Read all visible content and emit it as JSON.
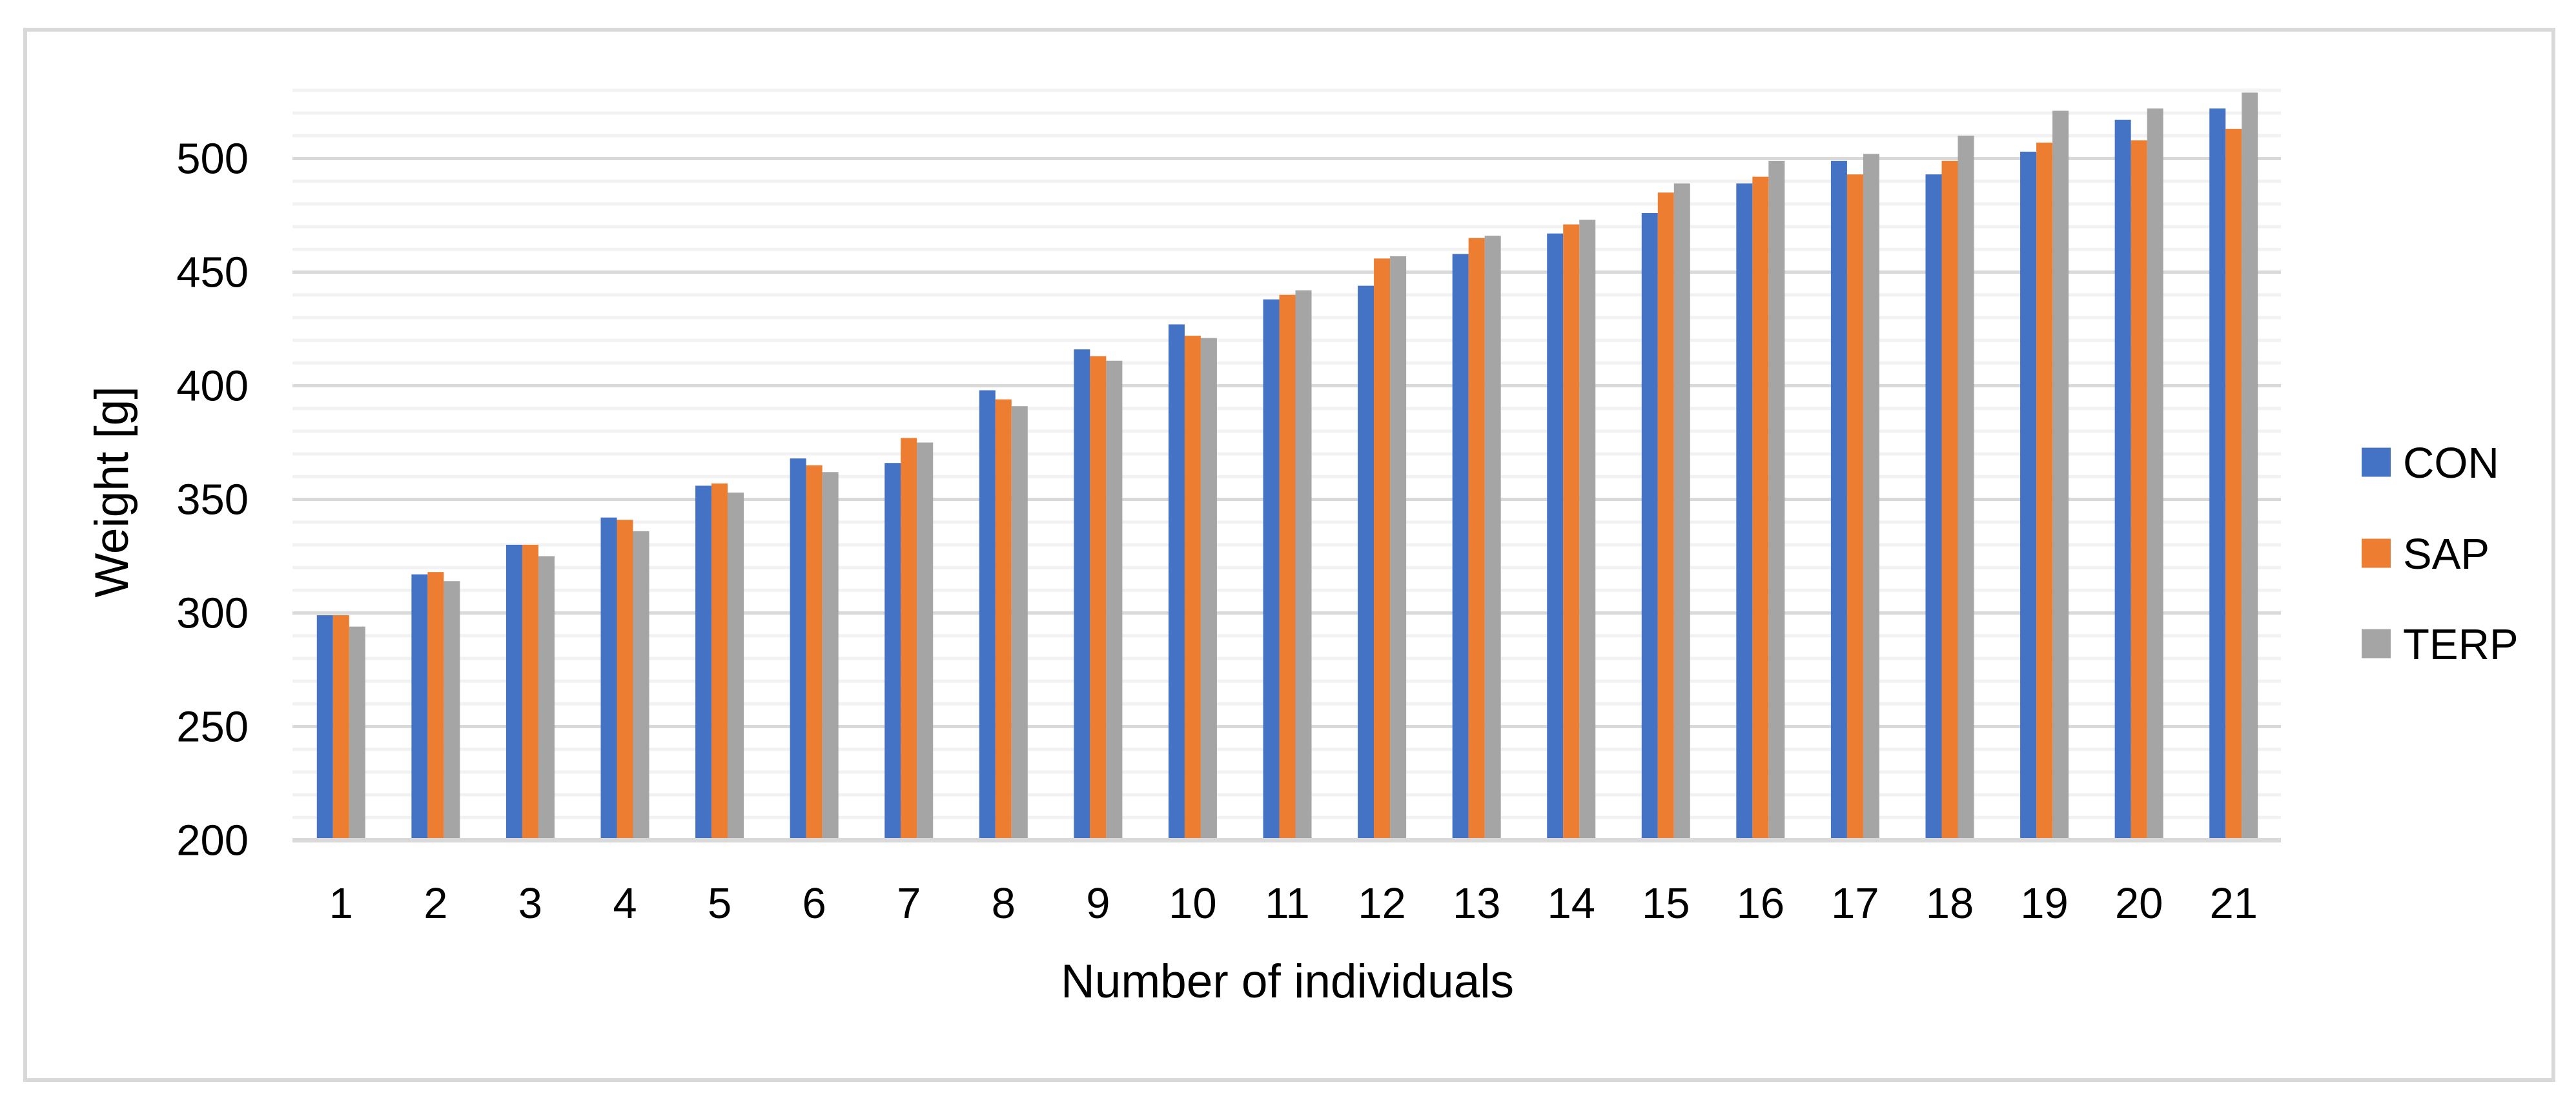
{
  "chart": {
    "background": "#FFFFFF",
    "frame_color": "#D9D9D9",
    "text_color": "#000000"
  },
  "chart_data": {
    "type": "bar",
    "title": "",
    "xlabel": "Number of individuals",
    "ylabel": "Weight [g]",
    "categories": [
      "1",
      "2",
      "3",
      "4",
      "5",
      "6",
      "7",
      "8",
      "9",
      "10",
      "11",
      "12",
      "13",
      "14",
      "15",
      "16",
      "17",
      "18",
      "19",
      "20",
      "21"
    ],
    "series": [
      {
        "name": "CON",
        "color": "#4472C4",
        "values": [
          299,
          317,
          330,
          342,
          356,
          368,
          366,
          398,
          416,
          427,
          438,
          444,
          458,
          467,
          476,
          489,
          499,
          493,
          503,
          517,
          522
        ]
      },
      {
        "name": "SAP",
        "color": "#ED7D31",
        "values": [
          299,
          318,
          330,
          341,
          357,
          365,
          377,
          394,
          413,
          422,
          440,
          456,
          465,
          471,
          485,
          492,
          493,
          499,
          507,
          508,
          513
        ]
      },
      {
        "name": "TERP",
        "color": "#A5A5A5",
        "values": [
          294,
          314,
          325,
          336,
          353,
          362,
          375,
          391,
          411,
          421,
          442,
          457,
          466,
          473,
          489,
          499,
          502,
          510,
          521,
          522,
          529
        ]
      }
    ],
    "ylim": [
      200,
      530
    ],
    "ytick_step": 50,
    "minor_gridline_step": 10,
    "yticks": [
      "200",
      "250",
      "300",
      "350",
      "400",
      "450",
      "500"
    ],
    "grid": {
      "major_color": "#D9D9D9",
      "minor_color": "#F2F2F2",
      "grid_on": true
    },
    "legend_position": "right",
    "bar_baseline": 200
  }
}
